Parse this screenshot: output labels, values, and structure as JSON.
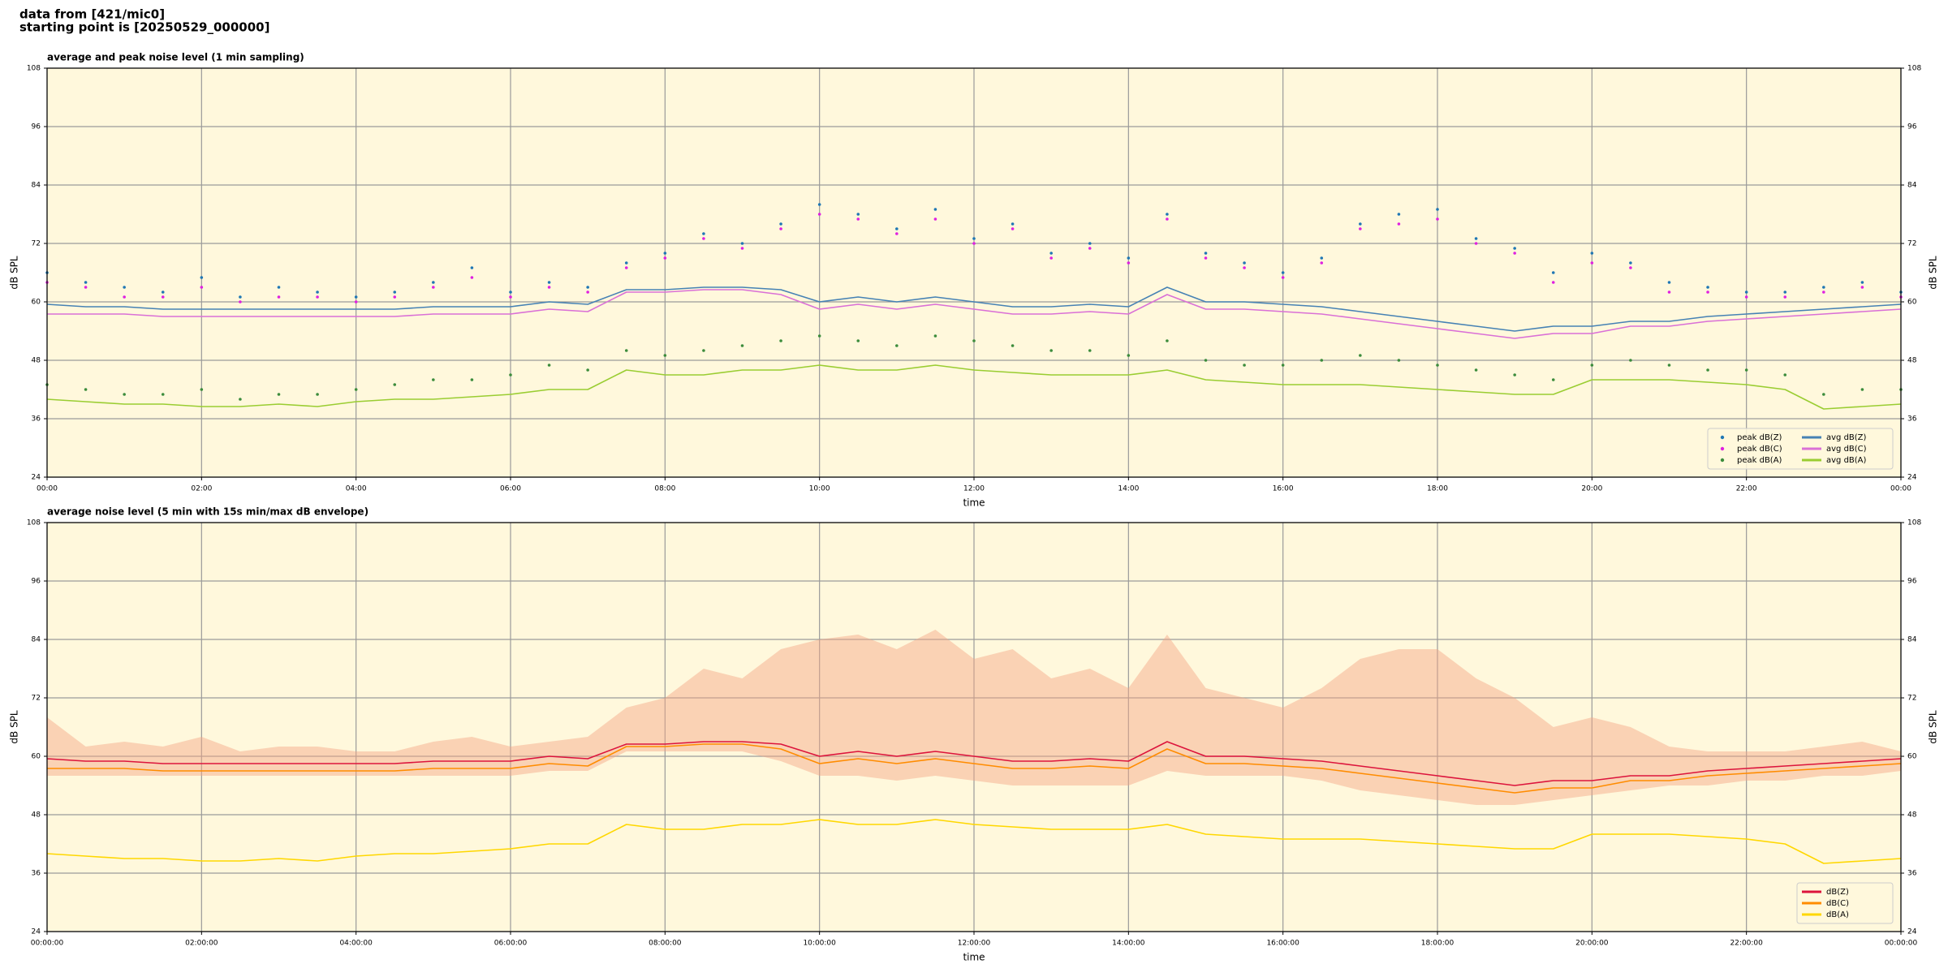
{
  "header": {
    "lines": [
      "data from [421/mic0]",
      "starting point is [20250529_000000]"
    ]
  },
  "chart_data": [
    {
      "type": "line",
      "title": "average and peak noise level (1 min sampling)",
      "x_label": "time",
      "y_label": "dB SPL",
      "background": "#fff8dc",
      "grid": true,
      "legend": "lower right",
      "legend_columns": 2,
      "xlim": [
        0,
        24
      ],
      "ylim": [
        24,
        108
      ],
      "xticks": [
        {
          "value": 0,
          "label": "00:00"
        },
        {
          "value": 2,
          "label": "02:00"
        },
        {
          "value": 4,
          "label": "04:00"
        },
        {
          "value": 6,
          "label": "06:00"
        },
        {
          "value": 8,
          "label": "08:00"
        },
        {
          "value": 10,
          "label": "10:00"
        },
        {
          "value": 12,
          "label": "12:00"
        },
        {
          "value": 14,
          "label": "14:00"
        },
        {
          "value": 16,
          "label": "16:00"
        },
        {
          "value": 18,
          "label": "18:00"
        },
        {
          "value": 20,
          "label": "20:00"
        },
        {
          "value": 22,
          "label": "22:00"
        },
        {
          "value": 24,
          "label": "00:00"
        }
      ],
      "yticks": [
        24,
        36,
        48,
        60,
        72,
        84,
        96,
        108
      ],
      "x": [
        0,
        0.5,
        1,
        1.5,
        2,
        2.5,
        3,
        3.5,
        4,
        4.5,
        5,
        5.5,
        6,
        6.5,
        7,
        7.5,
        8,
        8.5,
        9,
        9.5,
        10,
        10.5,
        11,
        11.5,
        12,
        12.5,
        13,
        13.5,
        14,
        14.5,
        15,
        15.5,
        16,
        16.5,
        17,
        17.5,
        18,
        18.5,
        19,
        19.5,
        20,
        20.5,
        21,
        21.5,
        22,
        22.5,
        23,
        23.5,
        24
      ],
      "series": [
        {
          "name": "peak dB(Z)",
          "type": "scatter",
          "color": "#1f77b4",
          "values": [
            66,
            64,
            63,
            62,
            65,
            61,
            63,
            62,
            61,
            62,
            64,
            67,
            62,
            64,
            63,
            68,
            70,
            74,
            72,
            76,
            80,
            78,
            75,
            79,
            73,
            76,
            70,
            72,
            69,
            78,
            70,
            68,
            66,
            69,
            76,
            78,
            79,
            73,
            71,
            66,
            70,
            68,
            64,
            63,
            62,
            62,
            63,
            64,
            62
          ]
        },
        {
          "name": "peak dB(C)",
          "type": "scatter",
          "color": "#e020e0",
          "values": [
            64,
            63,
            61,
            61,
            63,
            60,
            61,
            61,
            60,
            61,
            63,
            65,
            61,
            63,
            62,
            67,
            69,
            73,
            71,
            75,
            78,
            77,
            74,
            77,
            72,
            75,
            69,
            71,
            68,
            77,
            69,
            67,
            65,
            68,
            75,
            76,
            77,
            72,
            70,
            64,
            68,
            67,
            62,
            62,
            61,
            61,
            62,
            63,
            61
          ]
        },
        {
          "name": "peak dB(A)",
          "type": "scatter",
          "color": "#3c8c3c",
          "values": [
            43,
            42,
            41,
            41,
            42,
            40,
            41,
            41,
            42,
            43,
            44,
            44,
            45,
            47,
            46,
            50,
            49,
            50,
            51,
            52,
            53,
            52,
            51,
            53,
            52,
            51,
            50,
            50,
            49,
            52,
            48,
            47,
            47,
            48,
            49,
            48,
            47,
            46,
            45,
            44,
            47,
            48,
            47,
            46,
            46,
            45,
            41,
            42,
            42
          ]
        },
        {
          "name": "avg dB(Z)",
          "type": "line",
          "color": "#4682b4",
          "values": [
            59.5,
            59,
            59,
            58.5,
            58.5,
            58.5,
            58.5,
            58.5,
            58.5,
            58.5,
            59,
            59,
            59,
            60,
            59.5,
            62.5,
            62.5,
            63,
            63,
            62.5,
            60,
            61,
            60,
            61,
            60,
            59,
            59,
            59.5,
            59,
            63,
            60,
            60,
            59.5,
            59,
            58,
            57,
            56,
            55,
            54,
            55,
            55,
            56,
            56,
            57,
            57.5,
            58,
            58.5,
            59,
            59.5
          ]
        },
        {
          "name": "avg dB(C)",
          "type": "line",
          "color": "#da70d6",
          "values": [
            57.5,
            57.5,
            57.5,
            57,
            57,
            57,
            57,
            57,
            57,
            57,
            57.5,
            57.5,
            57.5,
            58.5,
            58,
            62,
            62,
            62.5,
            62.5,
            61.5,
            58.5,
            59.5,
            58.5,
            59.5,
            58.5,
            57.5,
            57.5,
            58,
            57.5,
            61.5,
            58.5,
            58.5,
            58,
            57.5,
            56.5,
            55.5,
            54.5,
            53.5,
            52.5,
            53.5,
            53.5,
            55,
            55,
            56,
            56.5,
            57,
            57.5,
            58,
            58.5
          ]
        },
        {
          "name": "avg dB(A)",
          "type": "line",
          "color": "#9acd32",
          "values": [
            40,
            39.5,
            39,
            39,
            38.5,
            38.5,
            39,
            38.5,
            39.5,
            40,
            40,
            40.5,
            41,
            42,
            42,
            46,
            45,
            45,
            46,
            46,
            47,
            46,
            46,
            47,
            46,
            45.5,
            45,
            45,
            45,
            46,
            44,
            43.5,
            43,
            43,
            43,
            42.5,
            42,
            41.5,
            41,
            41,
            44,
            44,
            44,
            43.5,
            43,
            42,
            38,
            38.5,
            39
          ]
        }
      ]
    },
    {
      "type": "line",
      "title": "average noise level (5 min with 15s min/max dB envelope)",
      "x_label": "time",
      "y_label": "dB SPL",
      "background": "#fff8dc",
      "grid": true,
      "legend": "lower right",
      "legend_columns": 1,
      "xlim": [
        0,
        24
      ],
      "ylim": [
        24,
        108
      ],
      "xticks": [
        {
          "value": 0,
          "label": "00:00:00"
        },
        {
          "value": 2,
          "label": "02:00:00"
        },
        {
          "value": 4,
          "label": "04:00:00"
        },
        {
          "value": 6,
          "label": "06:00:00"
        },
        {
          "value": 8,
          "label": "08:00:00"
        },
        {
          "value": 10,
          "label": "10:00:00"
        },
        {
          "value": 12,
          "label": "12:00:00"
        },
        {
          "value": 14,
          "label": "14:00:00"
        },
        {
          "value": 16,
          "label": "16:00:00"
        },
        {
          "value": 18,
          "label": "18:00:00"
        },
        {
          "value": 20,
          "label": "20:00:00"
        },
        {
          "value": 22,
          "label": "22:00:00"
        },
        {
          "value": 24,
          "label": "00:00:00"
        }
      ],
      "yticks": [
        24,
        36,
        48,
        60,
        72,
        84,
        96,
        108
      ],
      "x": [
        0,
        0.5,
        1,
        1.5,
        2,
        2.5,
        3,
        3.5,
        4,
        4.5,
        5,
        5.5,
        6,
        6.5,
        7,
        7.5,
        8,
        8.5,
        9,
        9.5,
        10,
        10.5,
        11,
        11.5,
        12,
        12.5,
        13,
        13.5,
        14,
        14.5,
        15,
        15.5,
        16,
        16.5,
        17,
        17.5,
        18,
        18.5,
        19,
        19.5,
        20,
        20.5,
        21,
        21.5,
        22,
        22.5,
        23,
        23.5,
        24
      ],
      "envelope": {
        "color": "#f4a582",
        "upper": [
          68,
          62,
          63,
          62,
          64,
          61,
          62,
          62,
          61,
          61,
          63,
          64,
          62,
          63,
          64,
          70,
          72,
          78,
          76,
          82,
          84,
          85,
          82,
          86,
          80,
          82,
          76,
          78,
          74,
          85,
          74,
          72,
          70,
          74,
          80,
          82,
          82,
          76,
          72,
          66,
          68,
          66,
          62,
          61,
          61,
          61,
          62,
          63,
          61
        ],
        "lower": [
          56,
          56,
          56,
          56,
          56,
          56,
          56,
          56,
          56,
          56,
          56,
          56,
          56,
          57,
          57,
          61,
          61,
          61,
          61,
          59,
          56,
          56,
          55,
          56,
          55,
          54,
          54,
          54,
          54,
          57,
          56,
          56,
          56,
          55,
          53,
          52,
          51,
          50,
          50,
          51,
          52,
          53,
          54,
          54,
          55,
          55,
          56,
          56,
          57
        ]
      },
      "series": [
        {
          "name": "dB(Z)",
          "type": "line",
          "color": "#dc143c",
          "values": [
            59.5,
            59,
            59,
            58.5,
            58.5,
            58.5,
            58.5,
            58.5,
            58.5,
            58.5,
            59,
            59,
            59,
            60,
            59.5,
            62.5,
            62.5,
            63,
            63,
            62.5,
            60,
            61,
            60,
            61,
            60,
            59,
            59,
            59.5,
            59,
            63,
            60,
            60,
            59.5,
            59,
            58,
            57,
            56,
            55,
            54,
            55,
            55,
            56,
            56,
            57,
            57.5,
            58,
            58.5,
            59,
            59.5
          ]
        },
        {
          "name": "dB(C)",
          "type": "line",
          "color": "#ff8c00",
          "values": [
            57.5,
            57.5,
            57.5,
            57,
            57,
            57,
            57,
            57,
            57,
            57,
            57.5,
            57.5,
            57.5,
            58.5,
            58,
            62,
            62,
            62.5,
            62.5,
            61.5,
            58.5,
            59.5,
            58.5,
            59.5,
            58.5,
            57.5,
            57.5,
            58,
            57.5,
            61.5,
            58.5,
            58.5,
            58,
            57.5,
            56.5,
            55.5,
            54.5,
            53.5,
            52.5,
            53.5,
            53.5,
            55,
            55,
            56,
            56.5,
            57,
            57.5,
            58,
            58.5
          ]
        },
        {
          "name": "dB(A)",
          "type": "line",
          "color": "#ffd700",
          "values": [
            40,
            39.5,
            39,
            39,
            38.5,
            38.5,
            39,
            38.5,
            39.5,
            40,
            40,
            40.5,
            41,
            42,
            42,
            46,
            45,
            45,
            46,
            46,
            47,
            46,
            46,
            47,
            46,
            45.5,
            45,
            45,
            45,
            46,
            44,
            43.5,
            43,
            43,
            43,
            42.5,
            42,
            41.5,
            41,
            41,
            44,
            44,
            44,
            43.5,
            43,
            42,
            38,
            38.5,
            39
          ]
        }
      ]
    }
  ]
}
